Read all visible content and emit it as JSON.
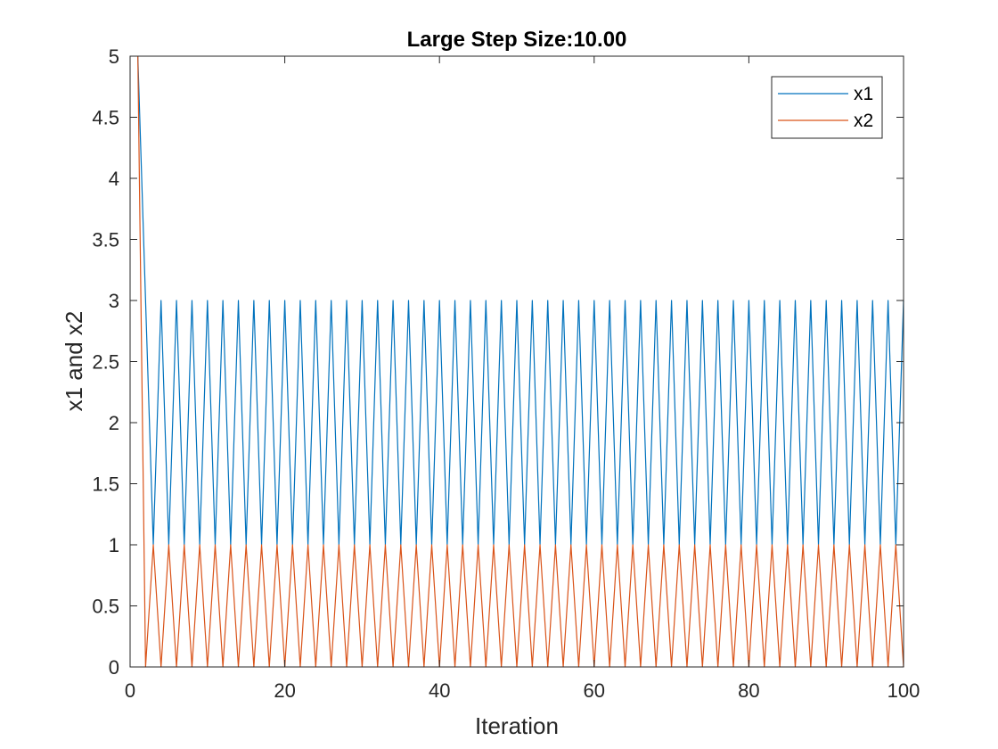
{
  "chart_data": {
    "type": "line",
    "title": "Large Step Size:10.00",
    "xlabel": "Iteration",
    "ylabel": "x1 and x2",
    "xlim": [
      0,
      100
    ],
    "ylim": [
      0,
      5
    ],
    "xticks": [
      0,
      20,
      40,
      60,
      80,
      100
    ],
    "yticks": [
      0,
      0.5,
      1,
      1.5,
      2,
      2.5,
      3,
      3.5,
      4,
      4.5,
      5
    ],
    "xtick_labels": [
      "0",
      "20",
      "40",
      "60",
      "80",
      "100"
    ],
    "ytick_labels": [
      "0",
      "0.5",
      "1",
      "1.5",
      "2",
      "2.5",
      "3",
      "3.5",
      "4",
      "4.5",
      "5"
    ],
    "grid": false,
    "legend": "top-right",
    "series": [
      {
        "name": "x1",
        "color": "#0072BD",
        "x": [
          1,
          2,
          3,
          4,
          5,
          6,
          7,
          8,
          9,
          10,
          11,
          12,
          13,
          14,
          15,
          16,
          17,
          18,
          19,
          20,
          21,
          22,
          23,
          24,
          25,
          26,
          27,
          28,
          29,
          30,
          31,
          32,
          33,
          34,
          35,
          36,
          37,
          38,
          39,
          40,
          41,
          42,
          43,
          44,
          45,
          46,
          47,
          48,
          49,
          50,
          51,
          52,
          53,
          54,
          55,
          56,
          57,
          58,
          59,
          60,
          61,
          62,
          63,
          64,
          65,
          66,
          67,
          68,
          69,
          70,
          71,
          72,
          73,
          74,
          75,
          76,
          77,
          78,
          79,
          80,
          81,
          82,
          83,
          84,
          85,
          86,
          87,
          88,
          89,
          90,
          91,
          92,
          93,
          94,
          95,
          96,
          97,
          98,
          99,
          100
        ],
        "y": [
          5,
          3,
          1,
          3,
          1,
          3,
          1,
          3,
          1,
          3,
          1,
          3,
          1,
          3,
          1,
          3,
          1,
          3,
          1,
          3,
          1,
          3,
          1,
          3,
          1,
          3,
          1,
          3,
          1,
          3,
          1,
          3,
          1,
          3,
          1,
          3,
          1,
          3,
          1,
          3,
          1,
          3,
          1,
          3,
          1,
          3,
          1,
          3,
          1,
          3,
          1,
          3,
          1,
          3,
          1,
          3,
          1,
          3,
          1,
          3,
          1,
          3,
          1,
          3,
          1,
          3,
          1,
          3,
          1,
          3,
          1,
          3,
          1,
          3,
          1,
          3,
          1,
          3,
          1,
          3,
          1,
          3,
          1,
          3,
          1,
          3,
          1,
          3,
          1,
          3,
          1,
          3,
          1,
          3,
          1,
          3,
          1,
          3,
          1,
          3
        ]
      },
      {
        "name": "x2",
        "color": "#D95319",
        "x": [
          1,
          2,
          3,
          4,
          5,
          6,
          7,
          8,
          9,
          10,
          11,
          12,
          13,
          14,
          15,
          16,
          17,
          18,
          19,
          20,
          21,
          22,
          23,
          24,
          25,
          26,
          27,
          28,
          29,
          30,
          31,
          32,
          33,
          34,
          35,
          36,
          37,
          38,
          39,
          40,
          41,
          42,
          43,
          44,
          45,
          46,
          47,
          48,
          49,
          50,
          51,
          52,
          53,
          54,
          55,
          56,
          57,
          58,
          59,
          60,
          61,
          62,
          63,
          64,
          65,
          66,
          67,
          68,
          69,
          70,
          71,
          72,
          73,
          74,
          75,
          76,
          77,
          78,
          79,
          80,
          81,
          82,
          83,
          84,
          85,
          86,
          87,
          88,
          89,
          90,
          91,
          92,
          93,
          94,
          95,
          96,
          97,
          98,
          99,
          100
        ],
        "y": [
          5,
          0,
          1,
          0,
          1,
          0,
          1,
          0,
          1,
          0,
          1,
          0,
          1,
          0,
          1,
          0,
          1,
          0,
          1,
          0,
          1,
          0,
          1,
          0,
          1,
          0,
          1,
          0,
          1,
          0,
          1,
          0,
          1,
          0,
          1,
          0,
          1,
          0,
          1,
          0,
          1,
          0,
          1,
          0,
          1,
          0,
          1,
          0,
          1,
          0,
          1,
          0,
          1,
          0,
          1,
          0,
          1,
          0,
          1,
          0,
          1,
          0,
          1,
          0,
          1,
          0,
          1,
          0,
          1,
          0,
          1,
          0,
          1,
          0,
          1,
          0,
          1,
          0,
          1,
          0,
          1,
          0,
          1,
          0,
          1,
          0,
          1,
          0,
          1,
          0,
          1,
          0,
          1,
          0,
          1,
          0,
          1,
          0,
          1,
          0
        ]
      }
    ]
  }
}
